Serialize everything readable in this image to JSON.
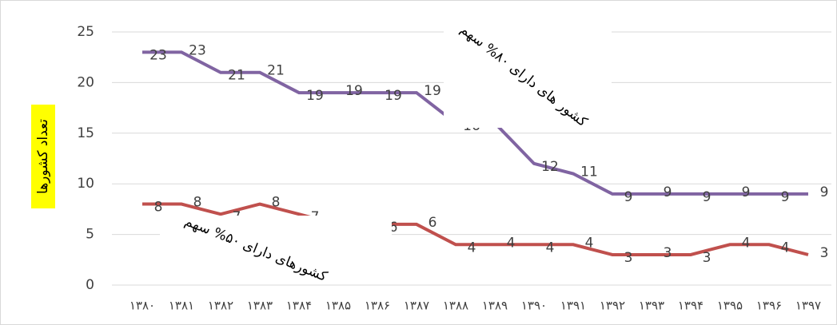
{
  "chart_data": {
    "type": "line",
    "y_label": "تعداد کشورها",
    "categories": [
      "۱۳۸۰",
      "۱۳۸۱",
      "۱۳۸۲",
      "۱۳۸۳",
      "۱۳۸۴",
      "۱۳۸۵",
      "۱۳۸۶",
      "۱۳۸۷",
      "۱۳۸۸",
      "۱۳۸۹",
      "۱۳۹۰",
      "۱۳۹۱",
      "۱۳۹۲",
      "۱۳۹۳",
      "۱۳۹۴",
      "۱۳۹۵",
      "۱۳۹۶",
      "۱۳۹۷"
    ],
    "series": [
      {
        "name": "کشور های دارای ۸۰% سهم",
        "color": "#8064a2",
        "values": [
          23,
          23,
          21,
          21,
          19,
          19,
          19,
          19,
          16,
          16,
          12,
          11,
          9,
          9,
          9,
          9,
          9,
          9
        ]
      },
      {
        "name": "کشورهای دارای ۵۰% سهم",
        "color": "#c0504d",
        "values": [
          8,
          8,
          7,
          8,
          7,
          6,
          6,
          6,
          4,
          4,
          4,
          4,
          3,
          3,
          3,
          4,
          4,
          3
        ]
      }
    ],
    "ylim": [
      0,
      25
    ],
    "yticks": [
      0,
      5,
      10,
      15,
      20,
      25
    ],
    "grid": true
  }
}
